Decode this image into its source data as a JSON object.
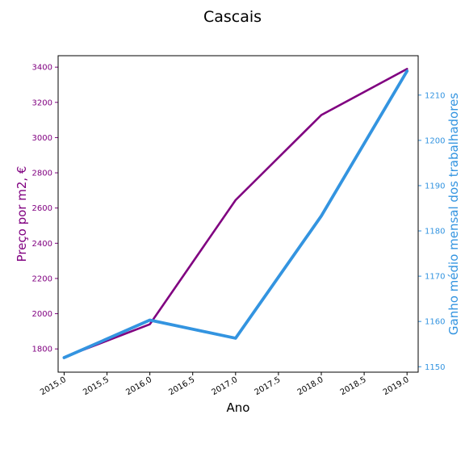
{
  "chart_data": {
    "type": "line",
    "title": "Cascais",
    "xlabel": "Ano",
    "ylabel_left": "Preço por m2, €",
    "ylabel_right": "Ganho médio mensal dos trabalhadores",
    "x": [
      2015,
      2016,
      2017,
      2018,
      2019
    ],
    "x_ticks": [
      "2015.0",
      "2015.5",
      "2016.0",
      "2016.5",
      "2017.0",
      "2017.5",
      "2018.0",
      "2018.5",
      "2019.0"
    ],
    "x_range": [
      2014.93,
      2019.13
    ],
    "y_left_ticks": [
      "1800",
      "2000",
      "2200",
      "2400",
      "2600",
      "2800",
      "3000",
      "3200",
      "3400"
    ],
    "y_left_range": [
      1668,
      3465
    ],
    "y_right_ticks": [
      "1150",
      "1160",
      "1170",
      "1180",
      "1190",
      "1200",
      "1210"
    ],
    "y_right_range": [
      1148.8,
      1218.7
    ],
    "grid": false,
    "series": [
      {
        "axis": "left",
        "color": "#800080",
        "values": [
          1753,
          1940,
          2645,
          3128,
          3390
        ]
      },
      {
        "axis": "right",
        "color": "#3394e0",
        "values": [
          1152,
          1160.3,
          1156.3,
          1183.3,
          1215.3
        ]
      }
    ]
  }
}
